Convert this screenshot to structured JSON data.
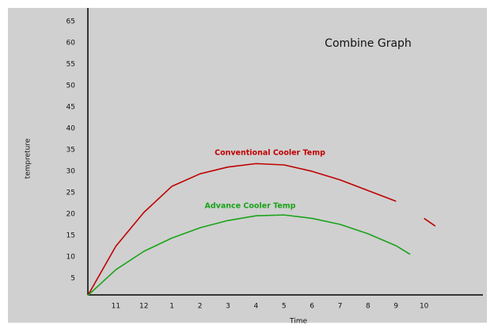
{
  "chart_data": {
    "type": "line",
    "title": "Combine Graph",
    "x_label": "Time",
    "y_label": "tempreture",
    "x": [
      0,
      1,
      2,
      3,
      4,
      5,
      6,
      7,
      8,
      9,
      10,
      11,
      11.5,
      12,
      12.4
    ],
    "series": [
      {
        "name": "Conventional Cooler Temp",
        "color": "#c00000",
        "values": [
          1,
          12.5,
          20.4,
          26.5,
          29.4,
          31,
          31.8,
          31.5,
          30,
          28,
          25.5,
          23,
          null,
          19,
          17.2
        ]
      },
      {
        "name": "Advance Cooler Temp",
        "color": "#1aa31a",
        "values": [
          1,
          7,
          11.3,
          14.4,
          16.8,
          18.5,
          19.6,
          19.8,
          19,
          17.6,
          15.4,
          12.6,
          10.6,
          null,
          null
        ]
      }
    ],
    "xlim": [
      0,
      14.1
    ],
    "ylim": [
      1,
      68
    ],
    "xticks": [
      {
        "value": 1,
        "label": "11"
      },
      {
        "value": 2,
        "label": "12"
      },
      {
        "value": 3,
        "label": "1"
      },
      {
        "value": 4,
        "label": "2"
      },
      {
        "value": 5,
        "label": "3"
      },
      {
        "value": 6,
        "label": "4"
      },
      {
        "value": 7,
        "label": "5"
      },
      {
        "value": 8,
        "label": "6"
      },
      {
        "value": 9,
        "label": "7"
      },
      {
        "value": 10,
        "label": "8"
      },
      {
        "value": 11,
        "label": "9"
      },
      {
        "value": 12,
        "label": "10"
      }
    ],
    "yticks": [
      5,
      10,
      15,
      20,
      25,
      30,
      35,
      40,
      45,
      50,
      55,
      60,
      65
    ],
    "grid": false
  }
}
